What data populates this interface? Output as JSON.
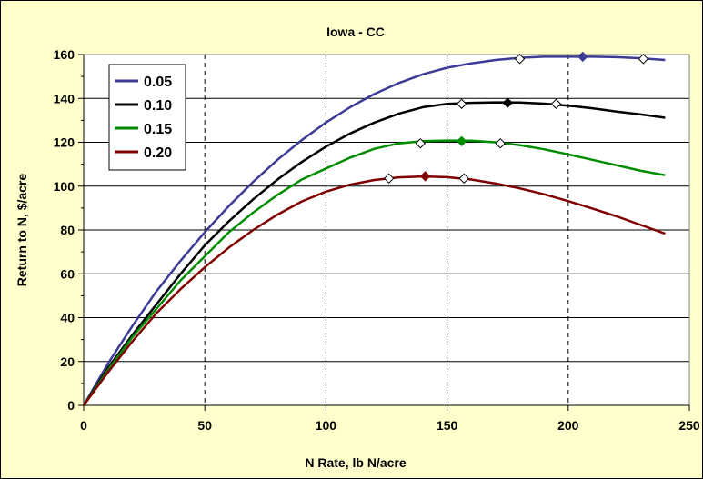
{
  "chart_data": {
    "type": "line",
    "title": "Iowa - CC",
    "xlabel": "N Rate, lb N/acre",
    "ylabel": "Return to N, $/acre",
    "xlim": [
      0,
      250
    ],
    "ylim": [
      0,
      160
    ],
    "xticks": [
      0,
      50,
      100,
      150,
      200,
      250
    ],
    "yticks": [
      0,
      20,
      40,
      60,
      80,
      100,
      120,
      140,
      160
    ],
    "grid": {
      "x": "dashed",
      "y": "solid"
    },
    "legend_position": "top-left",
    "series": [
      {
        "name": "0.05",
        "color": "#3C3C96",
        "x": [
          0,
          10,
          20,
          30,
          40,
          50,
          60,
          70,
          80,
          90,
          100,
          110,
          120,
          130,
          140,
          150,
          160,
          170,
          180,
          190,
          200,
          210,
          220,
          230,
          240
        ],
        "y": [
          0,
          19,
          36,
          52,
          66,
          79,
          91,
          102,
          112,
          121,
          129,
          136,
          142,
          147,
          151,
          154,
          156,
          157.5,
          158.5,
          159,
          159,
          159,
          158.8,
          158.3,
          157.5
        ],
        "optimum": [
          206,
          159
        ],
        "range_markers": [
          [
            180,
            158
          ],
          [
            231,
            158
          ]
        ]
      },
      {
        "name": "0.10",
        "color": "#000000",
        "x": [
          0,
          10,
          20,
          30,
          40,
          50,
          60,
          70,
          80,
          90,
          100,
          110,
          120,
          130,
          140,
          150,
          160,
          170,
          180,
          190,
          200,
          210,
          220,
          230,
          240
        ],
        "y": [
          0,
          17,
          32,
          46,
          60,
          73,
          84,
          94,
          103,
          111,
          118,
          124,
          129,
          133,
          136,
          137.5,
          138,
          138.2,
          138.1,
          137.6,
          136.7,
          135.5,
          134,
          132.7,
          131.2
        ],
        "optimum": [
          175,
          138
        ],
        "range_markers": [
          [
            156,
            137.5
          ],
          [
            195,
            137.5
          ]
        ]
      },
      {
        "name": "0.15",
        "color": "#008C00",
        "x": [
          0,
          10,
          20,
          30,
          40,
          50,
          60,
          70,
          80,
          90,
          100,
          110,
          120,
          130,
          140,
          150,
          160,
          170,
          180,
          190,
          200,
          210,
          220,
          230,
          240
        ],
        "y": [
          0,
          16,
          31,
          44,
          57,
          68,
          79,
          88,
          96,
          103,
          108,
          113,
          117,
          119.5,
          120.5,
          120.8,
          120.7,
          120,
          118.7,
          116.8,
          114.5,
          112,
          109.5,
          107,
          105
        ],
        "optimum": [
          156,
          120.5
        ],
        "range_markers": [
          [
            139,
            119.5
          ],
          [
            172,
            119.5
          ]
        ]
      },
      {
        "name": "0.20",
        "color": "#800000",
        "x": [
          0,
          10,
          20,
          30,
          40,
          50,
          60,
          70,
          80,
          90,
          100,
          110,
          120,
          130,
          140,
          150,
          160,
          170,
          180,
          190,
          200,
          210,
          220,
          230,
          240
        ],
        "y": [
          0,
          15,
          29,
          42,
          53,
          63,
          72,
          80,
          87,
          93,
          97.5,
          100.7,
          102.8,
          104,
          104.4,
          104.1,
          103,
          101.2,
          99,
          96.3,
          93.2,
          89.8,
          86.2,
          82.3,
          78.3
        ],
        "optimum": [
          141,
          104.5
        ],
        "range_markers": [
          [
            126,
            103.5
          ],
          [
            157,
            103.5
          ]
        ]
      }
    ]
  }
}
